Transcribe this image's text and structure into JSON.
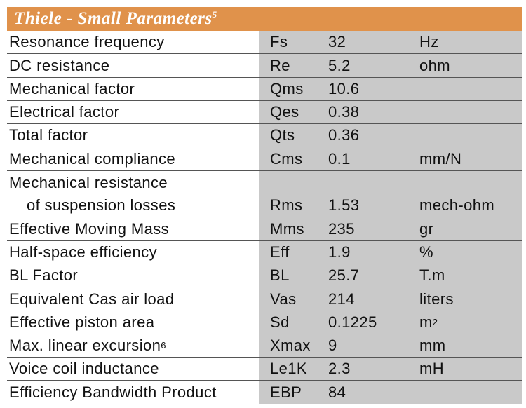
{
  "title": "Thiele - Small Parameters",
  "title_footnote": "5",
  "rows": [
    {
      "name": "Resonance frequency",
      "symbol": "Fs",
      "value": "32",
      "unit": "Hz"
    },
    {
      "name": "DC resistance",
      "symbol": "Re",
      "value": "5.2",
      "unit": "ohm"
    },
    {
      "name": "Mechanical factor",
      "symbol": "Qms",
      "value": "10.6",
      "unit": ""
    },
    {
      "name": "Electrical factor",
      "symbol": "Qes",
      "value": "0.38",
      "unit": ""
    },
    {
      "name": "Total factor",
      "symbol": "Qts",
      "value": "0.36",
      "unit": ""
    },
    {
      "name": "Mechanical compliance",
      "symbol": "Cms",
      "value": "0.1",
      "unit": "mm/N"
    },
    {
      "name": "Mechanical resistance",
      "name2": "of suspension losses",
      "symbol": "Rms",
      "value": "1.53",
      "unit": "mech-ohm"
    },
    {
      "name": "Effective Moving Mass",
      "symbol": "Mms",
      "value": "235",
      "unit": "gr"
    },
    {
      "name": "Half-space efficiency",
      "symbol": "Eff",
      "value": "1.9",
      "unit": "%"
    },
    {
      "name": "BL Factor",
      "symbol": "BL",
      "value": "25.7",
      "unit": "T.m"
    },
    {
      "name": "Equivalent Cas air load",
      "symbol": "Vas",
      "value": "214",
      "unit": "liters"
    },
    {
      "name": "Effective piston area",
      "symbol": "Sd",
      "value": "0.1225",
      "unit": "m",
      "unit_sup": "2"
    },
    {
      "name": "Max. linear excursion",
      "name_footnote": "6",
      "symbol": "Xmax",
      "value": "9",
      "unit": "mm"
    },
    {
      "name": "Voice coil inductance",
      "symbol": "Le1K",
      "value": "2.3",
      "unit": "mH"
    },
    {
      "name": "Efficiency Bandwidth Product",
      "symbol": "EBP",
      "value": "84",
      "unit": ""
    }
  ],
  "colors": {
    "header": "#e0924b",
    "gray": "#c9c9c9"
  }
}
